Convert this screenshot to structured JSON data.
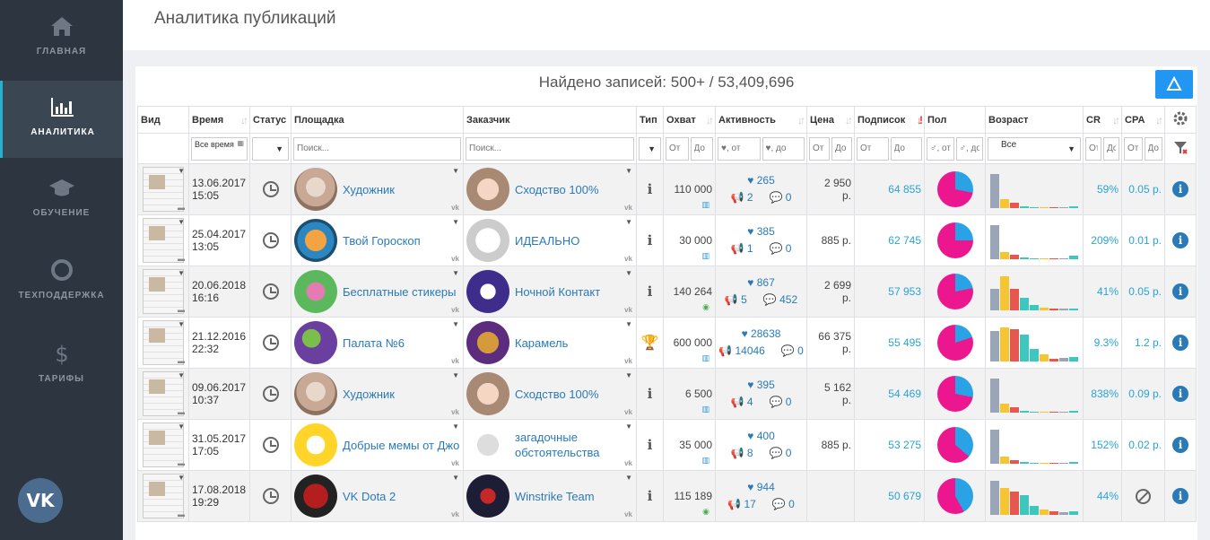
{
  "sidebar": {
    "items": [
      {
        "label": "ГЛАВНАЯ",
        "icon": "home-icon",
        "active": false
      },
      {
        "label": "АНАЛИТИКА",
        "icon": "bar-chart-icon",
        "active": true
      },
      {
        "label": "ОБУЧЕНИЕ",
        "icon": "graduation-cap-icon",
        "active": false
      },
      {
        "label": "ТЕХПОДДЕРЖКА",
        "icon": "lifebuoy-icon",
        "active": false
      },
      {
        "label": "ТАРИФЫ",
        "icon": "dollar-icon",
        "active": false
      }
    ],
    "vk_label": "VK"
  },
  "header": {
    "title": "Аналитика публикаций"
  },
  "panel": {
    "found_label": "Найдено записей: 500+ / 53,409,696"
  },
  "columns": [
    "Вид",
    "Время",
    "Статус",
    "Площадка",
    "Заказчик",
    "Тип",
    "Охват",
    "Активность",
    "Цена",
    "Подписок",
    "Пол",
    "Возраст",
    "CR",
    "CPA"
  ],
  "filters": {
    "time": "Все время",
    "status": "",
    "platform_placeholder": "Поиск...",
    "customer_placeholder": "Поиск...",
    "from": "От",
    "to": "До",
    "likes_from": "♥, от",
    "likes_to": "♥, до",
    "gender_from": "♂, от",
    "gender_to": "♂, до",
    "age": "Все"
  },
  "colors": {
    "accent": "#24b3cf",
    "link": "#2a7ab8",
    "pie_female": "#ec178f",
    "pie_male": "#29a3e6"
  },
  "rows": [
    {
      "date": "13.06.2017",
      "time": "15:05",
      "platform": "Художник",
      "customer": "Сходство 100%",
      "type": "info",
      "reach": "110 000",
      "reach_icon": "stats",
      "likes": "265",
      "reposts": "2",
      "comments": "0",
      "price": "2 950",
      "price_unit": "р.",
      "subs": "64 855",
      "female_share": 0.72,
      "ages": [
        0.95,
        0.25,
        0.15,
        0.04,
        0.02,
        0.02,
        0,
        0,
        0.05
      ],
      "cr": "59%",
      "cpa": "0.05 р.",
      "cpa_type": "info"
    },
    {
      "date": "25.04.2017",
      "time": "13:05",
      "platform": "Твой Гороскоп",
      "customer": "ИДЕАЛЬНО",
      "type": "info",
      "reach": "30 000",
      "reach_icon": "stats",
      "likes": "385",
      "reposts": "1",
      "comments": "0",
      "price": "885 р.",
      "price_unit": "",
      "subs": "62 745",
      "female_share": 0.75,
      "ages": [
        0.95,
        0.2,
        0.12,
        0.05,
        0.03,
        0,
        0,
        0,
        0.1
      ],
      "cr": "209%",
      "cpa": "0.01 р.",
      "cpa_type": "info"
    },
    {
      "date": "20.06.2018",
      "time": "16:16",
      "platform": "Бесплатные стикеры",
      "customer": "Ночной Контакт",
      "type": "info",
      "reach": "140 264",
      "reach_icon": "eye",
      "likes": "867",
      "reposts": "5",
      "comments": "452",
      "price": "2 699",
      "price_unit": "р.",
      "subs": "57 953",
      "female_share": 0.78,
      "ages": [
        0.6,
        0.95,
        0.6,
        0.35,
        0.15,
        0.08,
        0.05,
        0.05,
        0.05
      ],
      "cr": "41%",
      "cpa": "0.05 р.",
      "cpa_type": "info"
    },
    {
      "date": "21.12.2016",
      "time": "22:32",
      "platform": "Палата №6",
      "customer": "Карамель",
      "type": "trophy",
      "reach": "600 000",
      "reach_icon": "stats",
      "likes": "28638",
      "reposts": "14046",
      "comments": "0",
      "price": "66 375",
      "price_unit": "р.",
      "subs": "55 495",
      "female_share": 0.8,
      "ages": [
        0.85,
        0.95,
        0.9,
        0.75,
        0.35,
        0.2,
        0.08,
        0.1,
        0.12
      ],
      "cr": "9.3%",
      "cpa": "1.2 р.",
      "cpa_type": "info"
    },
    {
      "date": "09.06.2017",
      "time": "10:37",
      "platform": "Художник",
      "customer": "Сходство 100%",
      "type": "info",
      "reach": "6 500",
      "reach_icon": "stats",
      "likes": "395",
      "reposts": "4",
      "comments": "0",
      "price": "5 162",
      "price_unit": "р.",
      "subs": "54 469",
      "female_share": 0.72,
      "ages": [
        0.95,
        0.25,
        0.15,
        0.04,
        0.02,
        0,
        0,
        0,
        0.06
      ],
      "cr": "838%",
      "cpa": "0.09 р.",
      "cpa_type": "info"
    },
    {
      "date": "31.05.2017",
      "time": "17:05",
      "platform": "Добрые мемы от Джо",
      "customer": "загадочные обстоятельства",
      "type": "info",
      "reach": "35 000",
      "reach_icon": "stats",
      "likes": "400",
      "reposts": "8",
      "comments": "0",
      "price": "885 р.",
      "price_unit": "",
      "subs": "53 275",
      "female_share": 0.64,
      "ages": [
        0.95,
        0.2,
        0.1,
        0.05,
        0.02,
        0,
        0,
        0,
        0.06
      ],
      "cr": "152%",
      "cpa": "0.02 р.",
      "cpa_type": "info"
    },
    {
      "date": "17.08.2018",
      "time": "19:29",
      "platform": "VK Dota 2",
      "customer": "Winstrike Team",
      "type": "info",
      "reach": "115 189",
      "reach_icon": "eye",
      "likes": "944",
      "reposts": "17",
      "comments": "0",
      "price": "",
      "price_unit": "",
      "subs": "50 679",
      "female_share": 0.58,
      "ages": [
        0.95,
        0.75,
        0.65,
        0.55,
        0.25,
        0.15,
        0.1,
        0.08,
        0.1
      ],
      "cr": "44%",
      "cpa": "",
      "cpa_type": "ban"
    }
  ]
}
